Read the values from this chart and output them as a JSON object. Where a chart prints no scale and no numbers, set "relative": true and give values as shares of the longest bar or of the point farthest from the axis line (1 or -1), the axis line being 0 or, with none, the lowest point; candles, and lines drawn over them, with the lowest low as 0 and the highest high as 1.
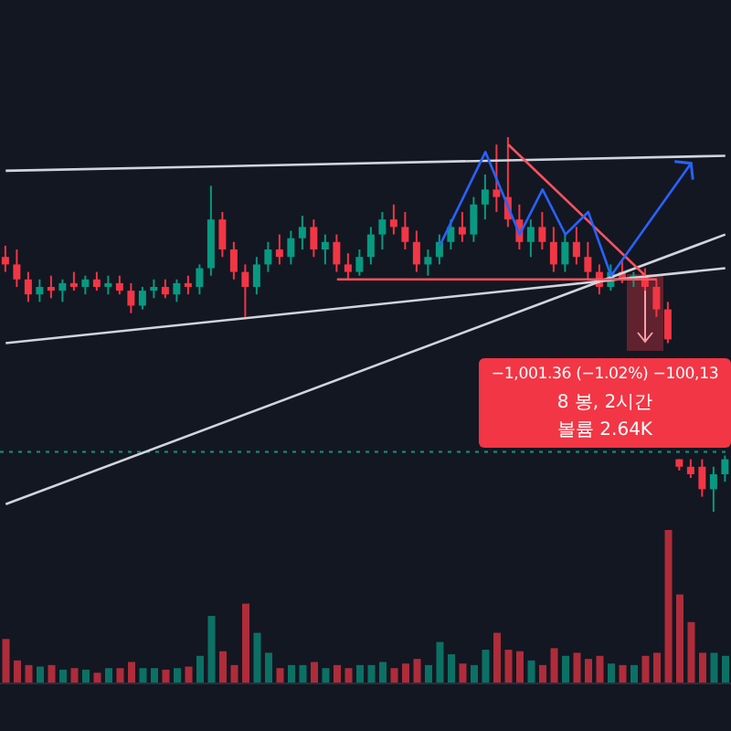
{
  "chart_data": [
    {
      "type": "candlestick",
      "relative": true,
      "tick_labels": false,
      "categories": [
        null,
        null,
        null,
        null,
        null,
        null,
        null,
        null,
        null,
        null,
        null,
        null,
        null,
        null,
        null,
        null,
        null,
        null,
        null,
        null,
        null,
        null,
        null,
        null,
        null,
        null,
        null,
        null,
        null,
        null,
        null,
        null,
        null,
        null,
        null,
        null,
        null,
        null,
        null,
        null,
        null,
        null,
        null,
        null,
        null,
        null,
        null,
        null,
        null,
        null,
        null,
        null,
        null,
        null,
        null,
        null,
        null,
        null,
        null,
        null,
        null,
        null,
        null,
        null
      ],
      "ohlc": [
        [
          0.68,
          0.71,
          0.64,
          0.66
        ],
        [
          0.66,
          0.7,
          0.6,
          0.62
        ],
        [
          0.62,
          0.64,
          0.56,
          0.58
        ],
        [
          0.58,
          0.62,
          0.56,
          0.6
        ],
        [
          0.6,
          0.63,
          0.57,
          0.59
        ],
        [
          0.59,
          0.62,
          0.56,
          0.61
        ],
        [
          0.61,
          0.64,
          0.59,
          0.6
        ],
        [
          0.6,
          0.63,
          0.58,
          0.62
        ],
        [
          0.62,
          0.64,
          0.59,
          0.6
        ],
        [
          0.6,
          0.63,
          0.58,
          0.61
        ],
        [
          0.61,
          0.63,
          0.58,
          0.59
        ],
        [
          0.59,
          0.61,
          0.53,
          0.55
        ],
        [
          0.55,
          0.6,
          0.54,
          0.59
        ],
        [
          0.59,
          0.62,
          0.57,
          0.6
        ],
        [
          0.6,
          0.62,
          0.57,
          0.58
        ],
        [
          0.58,
          0.62,
          0.56,
          0.61
        ],
        [
          0.61,
          0.63,
          0.58,
          0.6
        ],
        [
          0.6,
          0.66,
          0.58,
          0.65
        ],
        [
          0.65,
          0.87,
          0.63,
          0.78
        ],
        [
          0.78,
          0.8,
          0.68,
          0.7
        ],
        [
          0.7,
          0.72,
          0.62,
          0.64
        ],
        [
          0.64,
          0.66,
          0.52,
          0.6
        ],
        [
          0.6,
          0.68,
          0.58,
          0.66
        ],
        [
          0.66,
          0.72,
          0.64,
          0.7
        ],
        [
          0.7,
          0.74,
          0.66,
          0.68
        ],
        [
          0.68,
          0.75,
          0.66,
          0.73
        ],
        [
          0.73,
          0.79,
          0.7,
          0.76
        ],
        [
          0.76,
          0.78,
          0.68,
          0.7
        ],
        [
          0.7,
          0.74,
          0.66,
          0.72
        ],
        [
          0.72,
          0.74,
          0.64,
          0.66
        ],
        [
          0.66,
          0.69,
          0.62,
          0.64
        ],
        [
          0.64,
          0.7,
          0.63,
          0.68
        ],
        [
          0.68,
          0.76,
          0.66,
          0.74
        ],
        [
          0.74,
          0.8,
          0.7,
          0.78
        ],
        [
          0.78,
          0.82,
          0.74,
          0.76
        ],
        [
          0.76,
          0.8,
          0.7,
          0.72
        ],
        [
          0.72,
          0.75,
          0.64,
          0.66
        ],
        [
          0.66,
          0.7,
          0.63,
          0.68
        ],
        [
          0.68,
          0.74,
          0.66,
          0.72
        ],
        [
          0.72,
          0.78,
          0.7,
          0.76
        ],
        [
          0.76,
          0.8,
          0.72,
          0.74
        ],
        [
          0.74,
          0.84,
          0.72,
          0.82
        ],
        [
          0.82,
          0.9,
          0.78,
          0.86
        ],
        [
          0.86,
          0.98,
          0.8,
          0.84
        ],
        [
          0.84,
          1.0,
          0.76,
          0.78
        ],
        [
          0.78,
          0.82,
          0.7,
          0.72
        ],
        [
          0.72,
          0.78,
          0.68,
          0.76
        ],
        [
          0.76,
          0.8,
          0.7,
          0.72
        ],
        [
          0.72,
          0.76,
          0.64,
          0.66
        ],
        [
          0.66,
          0.74,
          0.64,
          0.72
        ],
        [
          0.72,
          0.76,
          0.66,
          0.68
        ],
        [
          0.68,
          0.72,
          0.62,
          0.64
        ],
        [
          0.64,
          0.66,
          0.58,
          0.6
        ],
        [
          0.6,
          0.66,
          0.59,
          0.64
        ],
        [
          0.64,
          0.67,
          0.61,
          0.62
        ],
        [
          0.62,
          0.64,
          0.6,
          0.63
        ],
        [
          0.63,
          0.65,
          0.59,
          0.6
        ],
        [
          0.6,
          0.62,
          0.52,
          0.54
        ],
        [
          0.54,
          0.56,
          0.45,
          0.46
        ],
        [
          0.14,
          0.14,
          0.11,
          0.12
        ],
        [
          0.12,
          0.14,
          0.09,
          0.1
        ],
        [
          0.12,
          0.14,
          0.04,
          0.06
        ],
        [
          0.06,
          0.12,
          0.0,
          0.1
        ],
        [
          0.1,
          0.15,
          0.08,
          0.14
        ]
      ],
      "colors": [
        "#f23645",
        "#f23645",
        "#f23645",
        "#089981",
        "#f23645",
        "#089981",
        "#f23645",
        "#089981",
        "#f23645",
        "#089981",
        "#f23645",
        "#f23645",
        "#089981",
        "#089981",
        "#f23645",
        "#089981",
        "#f23645",
        "#089981",
        "#089981",
        "#f23645",
        "#f23645",
        "#f23645",
        "#089981",
        "#089981",
        "#f23645",
        "#089981",
        "#089981",
        "#f23645",
        "#089981",
        "#f23645",
        "#f23645",
        "#089981",
        "#089981",
        "#089981",
        "#f23645",
        "#f23645",
        "#f23645",
        "#089981",
        "#089981",
        "#089981",
        "#f23645",
        "#089981",
        "#089981",
        "#f23645",
        "#f23645",
        "#f23645",
        "#089981",
        "#f23645",
        "#f23645",
        "#089981",
        "#f23645",
        "#f23645",
        "#f23645",
        "#089981",
        "#f23645",
        "#089981",
        "#f23645",
        "#f23645",
        "#f23645",
        "#f23645",
        "#f23645",
        "#f23645",
        "#089981",
        "#089981"
      ],
      "series": [
        {
          "type": "line",
          "color": "#d1d4dc",
          "values": [
            0.91,
            null,
            null,
            null,
            null,
            null,
            null,
            null,
            null,
            null,
            null,
            null,
            null,
            null,
            null,
            null,
            null,
            null,
            null,
            null,
            null,
            null,
            null,
            null,
            null,
            null,
            null,
            null,
            null,
            null,
            null,
            null,
            null,
            null,
            null,
            null,
            null,
            null,
            null,
            null,
            null,
            null,
            null,
            null,
            null,
            null,
            null,
            null,
            null,
            null,
            null,
            null,
            null,
            null,
            null,
            null,
            null,
            null,
            null,
            null,
            null,
            null,
            null,
            0.95
          ]
        },
        {
          "type": "line",
          "color": "#d1d4dc",
          "values": [
            0.45,
            null,
            null,
            null,
            null,
            null,
            null,
            null,
            null,
            null,
            null,
            null,
            null,
            null,
            null,
            null,
            null,
            null,
            null,
            null,
            null,
            null,
            null,
            null,
            null,
            null,
            null,
            null,
            null,
            null,
            null,
            null,
            null,
            null,
            null,
            null,
            null,
            null,
            null,
            null,
            null,
            null,
            null,
            null,
            null,
            null,
            null,
            null,
            null,
            null,
            null,
            null,
            null,
            null,
            null,
            null,
            null,
            null,
            null,
            null,
            null,
            null,
            null,
            0.65
          ]
        },
        {
          "type": "line",
          "color": "#d1d4dc",
          "values": [
            0.02,
            null,
            null,
            null,
            null,
            null,
            null,
            null,
            null,
            null,
            null,
            null,
            null,
            null,
            null,
            null,
            null,
            null,
            null,
            null,
            null,
            null,
            null,
            null,
            null,
            null,
            null,
            null,
            null,
            null,
            null,
            null,
            null,
            null,
            null,
            null,
            null,
            null,
            null,
            null,
            null,
            null,
            null,
            null,
            null,
            null,
            null,
            null,
            null,
            null,
            null,
            null,
            null,
            null,
            null,
            null,
            null,
            null,
            null,
            null,
            null,
            null,
            null,
            0.74
          ]
        },
        {
          "type": "line",
          "color": "#f7525f",
          "values": [
            null,
            null,
            null,
            null,
            null,
            null,
            null,
            null,
            null,
            null,
            null,
            null,
            null,
            null,
            null,
            null,
            null,
            null,
            null,
            null,
            null,
            null,
            null,
            null,
            null,
            null,
            null,
            null,
            null,
            0.62,
            null,
            null,
            null,
            null,
            null,
            null,
            null,
            null,
            null,
            null,
            null,
            null,
            null,
            null,
            null,
            null,
            null,
            null,
            null,
            null,
            null,
            null,
            null,
            null,
            null,
            null,
            null,
            0.62,
            null,
            null,
            null,
            null,
            null,
            null
          ]
        },
        {
          "type": "line",
          "color": "#f7525f",
          "values": [
            null,
            null,
            null,
            null,
            null,
            null,
            null,
            null,
            null,
            null,
            null,
            null,
            null,
            null,
            null,
            null,
            null,
            null,
            null,
            null,
            null,
            null,
            null,
            null,
            null,
            null,
            null,
            null,
            null,
            null,
            null,
            null,
            null,
            null,
            null,
            null,
            null,
            null,
            null,
            null,
            null,
            null,
            null,
            null,
            0.98,
            null,
            null,
            null,
            null,
            null,
            null,
            null,
            null,
            null,
            null,
            null,
            0.63,
            null,
            null,
            null,
            null,
            null,
            null,
            null
          ]
        },
        {
          "type": "line",
          "color": "#2962ff",
          "values": [
            null,
            null,
            null,
            null,
            null,
            null,
            null,
            null,
            null,
            null,
            null,
            null,
            null,
            null,
            null,
            null,
            null,
            null,
            null,
            null,
            null,
            null,
            null,
            null,
            null,
            null,
            null,
            null,
            null,
            null,
            null,
            null,
            null,
            null,
            null,
            null,
            null,
            null,
            0.71,
            null,
            null,
            null,
            0.96,
            null,
            null,
            0.74,
            null,
            0.86,
            null,
            0.74,
            null,
            0.8,
            null,
            0.63,
            null,
            null,
            null,
            null,
            null,
            null,
            0.93,
            null,
            null,
            null
          ]
        }
      ],
      "ref_lines": [
        {
          "axis": "y",
          "value": 0.16,
          "color": "#089981",
          "line_style": "dotted"
        }
      ],
      "annotations": [
        "−1,001.36 (−1.02%) −100,13",
        "8 봉, 2시간",
        "볼륨 2.64K"
      ]
    },
    {
      "type": "bar",
      "relative": true,
      "tick_labels": false,
      "categories": [
        null,
        null,
        null,
        null,
        null,
        null,
        null,
        null,
        null,
        null,
        null,
        null,
        null,
        null,
        null,
        null,
        null,
        null,
        null,
        null,
        null,
        null,
        null,
        null,
        null,
        null,
        null,
        null,
        null,
        null,
        null,
        null,
        null,
        null,
        null,
        null,
        null,
        null,
        null,
        null,
        null,
        null,
        null,
        null,
        null,
        null,
        null,
        null,
        null,
        null,
        null,
        null,
        null,
        null,
        null,
        null,
        null,
        null,
        null,
        null,
        null,
        null,
        null,
        null
      ],
      "values": [
        0.29,
        0.15,
        0.12,
        0.11,
        0.12,
        0.09,
        0.1,
        0.09,
        0.07,
        0.1,
        0.1,
        0.14,
        0.1,
        0.1,
        0.09,
        0.1,
        0.11,
        0.18,
        0.44,
        0.21,
        0.12,
        0.52,
        0.33,
        0.2,
        0.1,
        0.12,
        0.12,
        0.14,
        0.1,
        0.12,
        0.1,
        0.12,
        0.12,
        0.14,
        0.1,
        0.13,
        0.16,
        0.12,
        0.27,
        0.19,
        0.13,
        0.12,
        0.22,
        0.33,
        0.22,
        0.21,
        0.15,
        0.12,
        0.23,
        0.18,
        0.2,
        0.16,
        0.18,
        0.13,
        0.12,
        0.12,
        0.18,
        0.2,
        1,
        0.58,
        0.4,
        0.2,
        0.2,
        0.18
      ],
      "colors": [
        "#f23645",
        "#f23645",
        "#f23645",
        "#089981",
        "#f23645",
        "#089981",
        "#f23645",
        "#089981",
        "#f23645",
        "#089981",
        "#f23645",
        "#f23645",
        "#089981",
        "#089981",
        "#f23645",
        "#089981",
        "#f23645",
        "#089981",
        "#089981",
        "#f23645",
        "#f23645",
        "#f23645",
        "#089981",
        "#089981",
        "#f23645",
        "#089981",
        "#089981",
        "#f23645",
        "#089981",
        "#f23645",
        "#f23645",
        "#089981",
        "#089981",
        "#089981",
        "#f23645",
        "#f23645",
        "#f23645",
        "#089981",
        "#089981",
        "#089981",
        "#f23645",
        "#089981",
        "#089981",
        "#f23645",
        "#f23645",
        "#f23645",
        "#089981",
        "#f23645",
        "#f23645",
        "#089981",
        "#f23645",
        "#f23645",
        "#f23645",
        "#089981",
        "#f23645",
        "#089981",
        "#f23645",
        "#f23645",
        "#f23645",
        "#f23645",
        "#f23645",
        "#f23645",
        "#089981",
        "#089981"
      ]
    }
  ]
}
